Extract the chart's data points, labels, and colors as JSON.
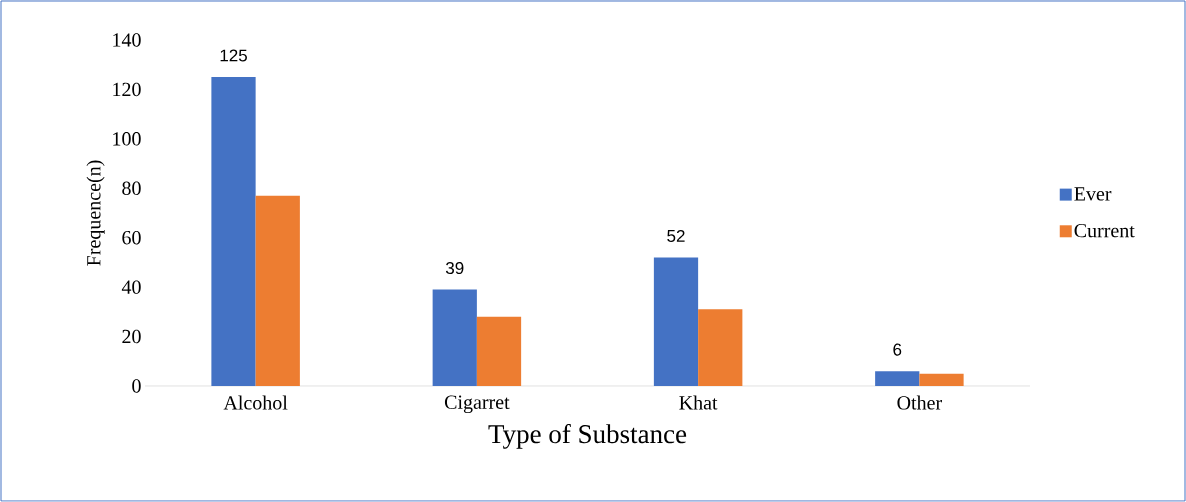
{
  "chart_data": {
    "type": "bar",
    "xlabel": "Type of Substance",
    "ylabel": "Frequence(n)",
    "categories": [
      "Alcohol",
      "Cigarret",
      "Khat",
      "Other"
    ],
    "series": [
      {
        "name": "Ever",
        "color": "#4472c4",
        "values": [
          125,
          39,
          52,
          6
        ],
        "value_labels": [
          "125",
          "39",
          "52",
          "6"
        ]
      },
      {
        "name": "Current",
        "color": "#ed7d31",
        "values": [
          77,
          28,
          31,
          5
        ]
      }
    ],
    "ylim": [
      0,
      140
    ],
    "yticks": [
      0,
      20,
      40,
      60,
      80,
      100,
      120,
      140
    ],
    "legend": "right"
  }
}
